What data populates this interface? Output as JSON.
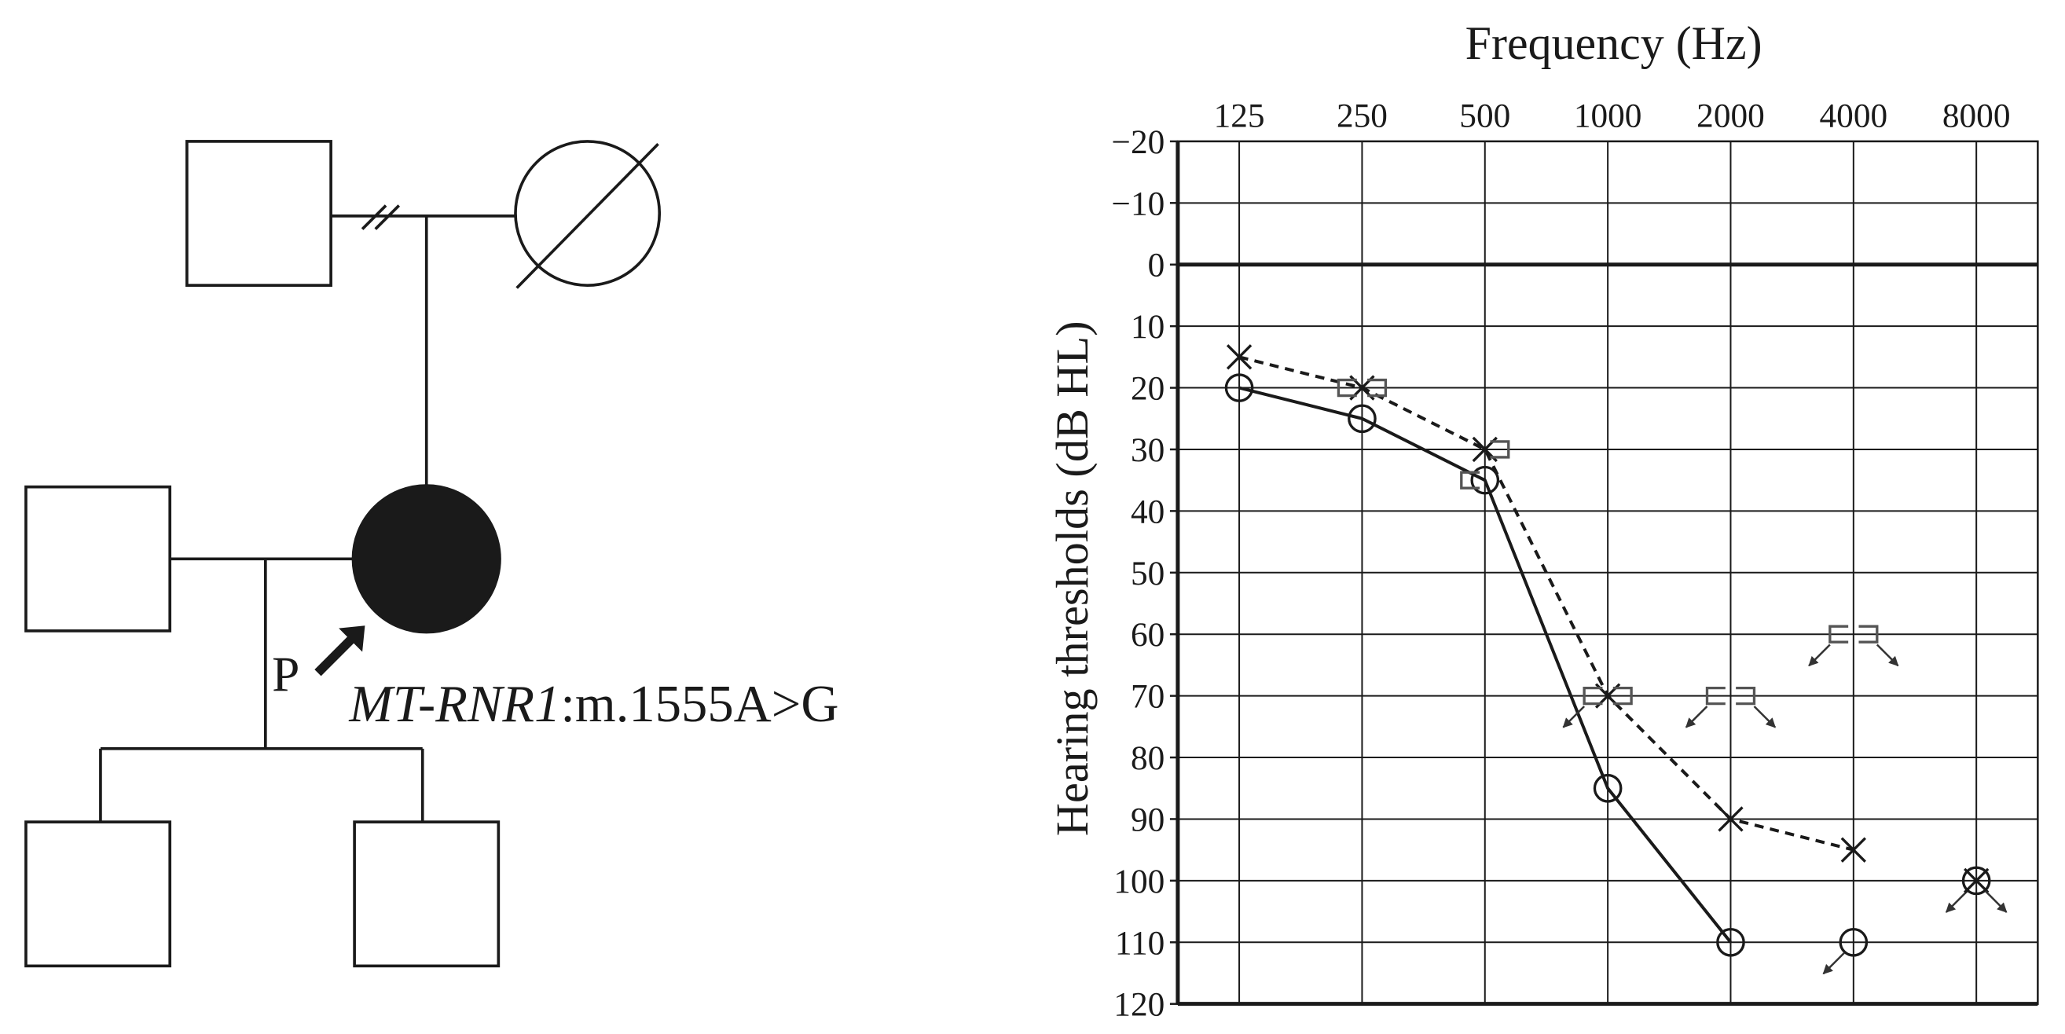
{
  "pedigree": {
    "proband_label": "P",
    "variant_gene": "MT-RNR1",
    "variant_change": ":m.1555A>G"
  },
  "chart_data": {
    "type": "line",
    "title": "Frequency (Hz)",
    "y_label": "Hearing thresholds (dB HL)",
    "categories": [
      "125",
      "250",
      "500",
      "1000",
      "2000",
      "4000",
      "8000"
    ],
    "ylim": [
      -20,
      120
    ],
    "y_reversed": true,
    "yticks": [
      {
        "value": -20,
        "label": "−20"
      },
      {
        "value": -10,
        "label": "−10"
      },
      0,
      10,
      20,
      30,
      40,
      50,
      60,
      70,
      80,
      90,
      100,
      110,
      120
    ],
    "grid": true,
    "series": [
      {
        "marker": "circle",
        "line": "solid",
        "color": "#1a1a1a",
        "values": [
          20,
          25,
          35,
          85,
          110,
          110,
          100
        ],
        "no_response": [
          false,
          false,
          false,
          false,
          false,
          true,
          true
        ]
      },
      {
        "marker": "cross",
        "line": "dashed",
        "color": "#1a1a1a",
        "values": [
          15,
          20,
          30,
          70,
          90,
          95,
          100
        ],
        "no_response": [
          false,
          false,
          false,
          false,
          false,
          false,
          true
        ]
      },
      {
        "marker": "bracket-left",
        "line": "none",
        "color": "#555555",
        "values": [
          null,
          20,
          35,
          70,
          70,
          60,
          null
        ],
        "no_response": [
          false,
          false,
          false,
          true,
          true,
          true,
          false
        ]
      },
      {
        "marker": "bracket-right",
        "line": "none",
        "color": "#555555",
        "values": [
          null,
          20,
          30,
          70,
          70,
          60,
          null
        ],
        "no_response": [
          false,
          false,
          false,
          false,
          true,
          true,
          false
        ]
      }
    ]
  }
}
